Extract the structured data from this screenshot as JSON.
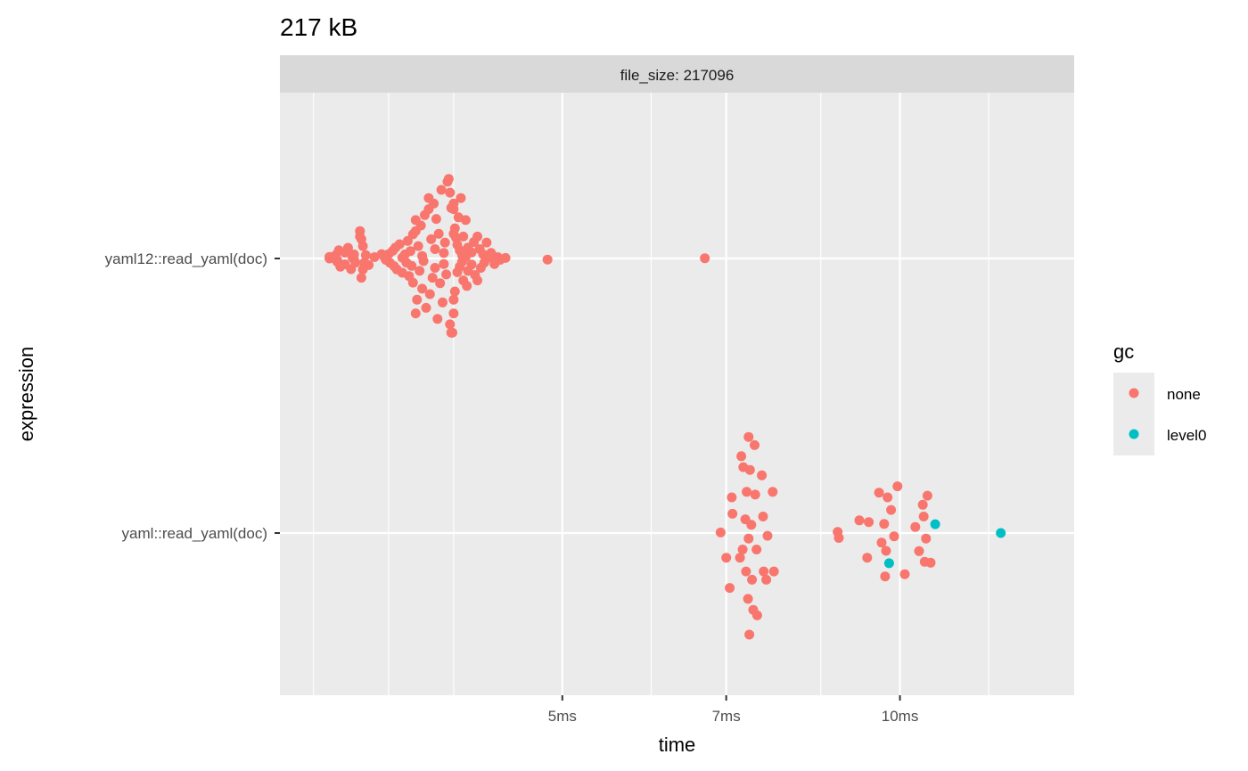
{
  "chart_data": {
    "type": "scatter",
    "title": "217 kB",
    "facet_label": "file_size: 217096",
    "xlabel": "time",
    "ylabel": "expression",
    "x_scale": "log",
    "x_unit": "ms",
    "xlim": [
      2.8,
      14.3
    ],
    "x_ticks": [
      {
        "value": 5,
        "label": "5ms"
      },
      {
        "value": 7,
        "label": "7ms"
      },
      {
        "value": 10,
        "label": "10ms"
      }
    ],
    "y_categories": [
      "yaml12::read_yaml(doc)",
      "yaml::read_yaml(doc)"
    ],
    "grid": true,
    "legend": {
      "title": "gc",
      "position": "right",
      "entries": [
        {
          "label": "none",
          "color": "#F8766D"
        },
        {
          "label": "level0",
          "color": "#00BFC4"
        }
      ]
    },
    "series": [
      {
        "category": "yaml12::read_yaml(doc)",
        "points": [
          {
            "x": 3.1,
            "dy": 0,
            "gc": "none"
          },
          {
            "x": 3.1,
            "dy": 0.006,
            "gc": "none"
          },
          {
            "x": 3.14,
            "dy": 0.012,
            "gc": "none"
          },
          {
            "x": 3.15,
            "dy": -0.006,
            "gc": "none"
          },
          {
            "x": 3.15,
            "dy": -0.012,
            "gc": "none"
          },
          {
            "x": 3.16,
            "dy": 0.03,
            "gc": "none"
          },
          {
            "x": 3.17,
            "dy": -0.03,
            "gc": "none"
          },
          {
            "x": 3.2,
            "dy": 0.021,
            "gc": "none"
          },
          {
            "x": 3.2,
            "dy": -0.021,
            "gc": "none"
          },
          {
            "x": 3.22,
            "dy": 0.039,
            "gc": "none"
          },
          {
            "x": 3.24,
            "dy": -0.039,
            "gc": "none"
          },
          {
            "x": 3.25,
            "dy": 0.003,
            "gc": "none"
          },
          {
            "x": 3.26,
            "dy": -0.003,
            "gc": "none"
          },
          {
            "x": 3.26,
            "dy": 0.015,
            "gc": "none"
          },
          {
            "x": 3.27,
            "dy": -0.015,
            "gc": "none"
          },
          {
            "x": 3.3,
            "dy": 0.1,
            "gc": "none"
          },
          {
            "x": 3.3,
            "dy": 0.08,
            "gc": "none"
          },
          {
            "x": 3.31,
            "dy": -0.07,
            "gc": "none"
          },
          {
            "x": 3.31,
            "dy": 0.07,
            "gc": "none"
          },
          {
            "x": 3.32,
            "dy": -0.04,
            "gc": "none"
          },
          {
            "x": 3.32,
            "dy": 0.045,
            "gc": "none"
          },
          {
            "x": 3.33,
            "dy": -0.015,
            "gc": "none"
          },
          {
            "x": 3.34,
            "dy": 0.012,
            "gc": "none"
          },
          {
            "x": 3.36,
            "dy": -0.024,
            "gc": "none"
          },
          {
            "x": 3.4,
            "dy": 0.005,
            "gc": "none"
          },
          {
            "x": 3.45,
            "dy": 0.016,
            "gc": "none"
          },
          {
            "x": 3.47,
            "dy": 0.005,
            "gc": "none"
          },
          {
            "x": 3.48,
            "dy": -0.005,
            "gc": "none"
          },
          {
            "x": 3.5,
            "dy": 0.016,
            "gc": "none"
          },
          {
            "x": 3.51,
            "dy": -0.016,
            "gc": "none"
          },
          {
            "x": 3.53,
            "dy": 0.028,
            "gc": "none"
          },
          {
            "x": 3.54,
            "dy": -0.028,
            "gc": "none"
          },
          {
            "x": 3.55,
            "dy": 0.04,
            "gc": "none"
          },
          {
            "x": 3.56,
            "dy": -0.04,
            "gc": "none"
          },
          {
            "x": 3.58,
            "dy": 0.052,
            "gc": "none"
          },
          {
            "x": 3.6,
            "dy": -0.052,
            "gc": "none"
          },
          {
            "x": 3.6,
            "dy": 0.003,
            "gc": "none"
          },
          {
            "x": 3.62,
            "dy": 0.015,
            "gc": "none"
          },
          {
            "x": 3.63,
            "dy": -0.015,
            "gc": "none"
          },
          {
            "x": 3.64,
            "dy": 0.064,
            "gc": "none"
          },
          {
            "x": 3.65,
            "dy": -0.064,
            "gc": "none"
          },
          {
            "x": 3.66,
            "dy": 0.027,
            "gc": "none"
          },
          {
            "x": 3.67,
            "dy": -0.027,
            "gc": "none"
          },
          {
            "x": 3.68,
            "dy": 0.088,
            "gc": "none"
          },
          {
            "x": 3.68,
            "dy": -0.088,
            "gc": "none"
          },
          {
            "x": 3.7,
            "dy": 0.14,
            "gc": "none"
          },
          {
            "x": 3.7,
            "dy": 0.1,
            "gc": "none"
          },
          {
            "x": 3.7,
            "dy": -0.2,
            "gc": "none"
          },
          {
            "x": 3.71,
            "dy": -0.15,
            "gc": "none"
          },
          {
            "x": 3.72,
            "dy": 0.045,
            "gc": "none"
          },
          {
            "x": 3.73,
            "dy": -0.045,
            "gc": "none"
          },
          {
            "x": 3.74,
            "dy": 0.12,
            "gc": "none"
          },
          {
            "x": 3.75,
            "dy": -0.11,
            "gc": "none"
          },
          {
            "x": 3.75,
            "dy": 0.009,
            "gc": "none"
          },
          {
            "x": 3.76,
            "dy": -0.009,
            "gc": "none"
          },
          {
            "x": 3.77,
            "dy": 0.158,
            "gc": "none"
          },
          {
            "x": 3.78,
            "dy": -0.18,
            "gc": "none"
          },
          {
            "x": 3.8,
            "dy": 0.22,
            "gc": "none"
          },
          {
            "x": 3.8,
            "dy": 0.18,
            "gc": "none"
          },
          {
            "x": 3.81,
            "dy": -0.13,
            "gc": "none"
          },
          {
            "x": 3.82,
            "dy": 0.07,
            "gc": "none"
          },
          {
            "x": 3.83,
            "dy": -0.07,
            "gc": "none"
          },
          {
            "x": 3.84,
            "dy": 0.2,
            "gc": "none"
          },
          {
            "x": 3.85,
            "dy": 0.034,
            "gc": "none"
          },
          {
            "x": 3.85,
            "dy": -0.034,
            "gc": "none"
          },
          {
            "x": 3.86,
            "dy": 0.144,
            "gc": "none"
          },
          {
            "x": 3.87,
            "dy": -0.22,
            "gc": "none"
          },
          {
            "x": 3.88,
            "dy": 0.09,
            "gc": "none"
          },
          {
            "x": 3.89,
            "dy": -0.09,
            "gc": "none"
          },
          {
            "x": 3.9,
            "dy": 0.25,
            "gc": "none"
          },
          {
            "x": 3.91,
            "dy": -0.16,
            "gc": "none"
          },
          {
            "x": 3.92,
            "dy": 0.02,
            "gc": "none"
          },
          {
            "x": 3.92,
            "dy": -0.02,
            "gc": "none"
          },
          {
            "x": 3.93,
            "dy": 0.058,
            "gc": "none"
          },
          {
            "x": 3.94,
            "dy": -0.058,
            "gc": "none"
          },
          {
            "x": 3.95,
            "dy": 0.28,
            "gc": "none"
          },
          {
            "x": 3.96,
            "dy": 0.29,
            "gc": "none"
          },
          {
            "x": 3.97,
            "dy": 0.24,
            "gc": "none"
          },
          {
            "x": 3.97,
            "dy": -0.24,
            "gc": "none"
          },
          {
            "x": 3.98,
            "dy": -0.27,
            "gc": "none"
          },
          {
            "x": 3.98,
            "dy": 0.184,
            "gc": "none"
          },
          {
            "x": 3.99,
            "dy": -0.27,
            "gc": "none"
          },
          {
            "x": 4.0,
            "dy": 0.2,
            "gc": "none"
          },
          {
            "x": 4.0,
            "dy": -0.2,
            "gc": "none"
          },
          {
            "x": 4.0,
            "dy": 0.18,
            "gc": "none"
          },
          {
            "x": 4.0,
            "dy": 0.09,
            "gc": "none"
          },
          {
            "x": 4.0,
            "dy": -0.15,
            "gc": "none"
          },
          {
            "x": 4.01,
            "dy": 0.11,
            "gc": "none"
          },
          {
            "x": 4.01,
            "dy": -0.12,
            "gc": "none"
          },
          {
            "x": 4.02,
            "dy": 0.075,
            "gc": "none"
          },
          {
            "x": 4.03,
            "dy": 0.05,
            "gc": "none"
          },
          {
            "x": 4.03,
            "dy": -0.05,
            "gc": "none"
          },
          {
            "x": 4.04,
            "dy": 0.15,
            "gc": "none"
          },
          {
            "x": 4.05,
            "dy": 0.03,
            "gc": "none"
          },
          {
            "x": 4.05,
            "dy": -0.03,
            "gc": "none"
          },
          {
            "x": 4.06,
            "dy": 0.22,
            "gc": "none"
          },
          {
            "x": 4.07,
            "dy": 0.012,
            "gc": "none"
          },
          {
            "x": 4.07,
            "dy": -0.012,
            "gc": "none"
          },
          {
            "x": 4.08,
            "dy": 0.08,
            "gc": "none"
          },
          {
            "x": 4.08,
            "dy": -0.08,
            "gc": "none"
          },
          {
            "x": 4.1,
            "dy": 0.14,
            "gc": "none"
          },
          {
            "x": 4.1,
            "dy": 0.006,
            "gc": "none"
          },
          {
            "x": 4.11,
            "dy": -0.1,
            "gc": "none"
          },
          {
            "x": 4.12,
            "dy": 0.04,
            "gc": "none"
          },
          {
            "x": 4.12,
            "dy": -0.045,
            "gc": "none"
          },
          {
            "x": 4.15,
            "dy": 0.022,
            "gc": "none"
          },
          {
            "x": 4.15,
            "dy": -0.022,
            "gc": "none"
          },
          {
            "x": 4.17,
            "dy": 0.06,
            "gc": "none"
          },
          {
            "x": 4.18,
            "dy": -0.06,
            "gc": "none"
          },
          {
            "x": 4.2,
            "dy": 0.08,
            "gc": "none"
          },
          {
            "x": 4.2,
            "dy": -0.08,
            "gc": "none"
          },
          {
            "x": 4.22,
            "dy": 0.034,
            "gc": "none"
          },
          {
            "x": 4.23,
            "dy": -0.034,
            "gc": "none"
          },
          {
            "x": 4.25,
            "dy": 0.015,
            "gc": "none"
          },
          {
            "x": 4.26,
            "dy": -0.015,
            "gc": "none"
          },
          {
            "x": 4.28,
            "dy": 0.058,
            "gc": "none"
          },
          {
            "x": 4.3,
            "dy": 0.004,
            "gc": "none"
          },
          {
            "x": 4.32,
            "dy": 0.02,
            "gc": "none"
          },
          {
            "x": 4.35,
            "dy": -0.02,
            "gc": "none"
          },
          {
            "x": 4.38,
            "dy": 0.005,
            "gc": "none"
          },
          {
            "x": 4.4,
            "dy": -0.005,
            "gc": "none"
          },
          {
            "x": 4.45,
            "dy": 0.002,
            "gc": "none"
          },
          {
            "x": 4.85,
            "dy": -0.004,
            "gc": "none"
          },
          {
            "x": 6.7,
            "dy": 0.001,
            "gc": "none"
          }
        ]
      },
      {
        "category": "yaml::read_yaml(doc)",
        "points": [
          {
            "x": 6.92,
            "dy": 0.002,
            "gc": "none"
          },
          {
            "x": 7.0,
            "dy": -0.09,
            "gc": "none"
          },
          {
            "x": 7.05,
            "dy": -0.2,
            "gc": "none"
          },
          {
            "x": 7.08,
            "dy": 0.13,
            "gc": "none"
          },
          {
            "x": 7.09,
            "dy": 0.07,
            "gc": "none"
          },
          {
            "x": 7.2,
            "dy": -0.09,
            "gc": "none"
          },
          {
            "x": 7.22,
            "dy": 0.28,
            "gc": "none"
          },
          {
            "x": 7.24,
            "dy": -0.06,
            "gc": "none"
          },
          {
            "x": 7.25,
            "dy": 0.24,
            "gc": "none"
          },
          {
            "x": 7.28,
            "dy": 0.05,
            "gc": "none"
          },
          {
            "x": 7.29,
            "dy": -0.14,
            "gc": "none"
          },
          {
            "x": 7.3,
            "dy": 0.15,
            "gc": "none"
          },
          {
            "x": 7.32,
            "dy": -0.24,
            "gc": "none"
          },
          {
            "x": 7.33,
            "dy": 0.35,
            "gc": "none"
          },
          {
            "x": 7.33,
            "dy": -0.02,
            "gc": "none"
          },
          {
            "x": 7.34,
            "dy": -0.37,
            "gc": "none"
          },
          {
            "x": 7.35,
            "dy": 0.23,
            "gc": "none"
          },
          {
            "x": 7.37,
            "dy": 0.03,
            "gc": "none"
          },
          {
            "x": 7.38,
            "dy": -0.17,
            "gc": "none"
          },
          {
            "x": 7.4,
            "dy": -0.28,
            "gc": "none"
          },
          {
            "x": 7.42,
            "dy": 0.32,
            "gc": "none"
          },
          {
            "x": 7.43,
            "dy": 0.14,
            "gc": "none"
          },
          {
            "x": 7.45,
            "dy": -0.06,
            "gc": "none"
          },
          {
            "x": 7.46,
            "dy": -0.3,
            "gc": "none"
          },
          {
            "x": 7.53,
            "dy": 0.21,
            "gc": "none"
          },
          {
            "x": 7.55,
            "dy": 0.06,
            "gc": "none"
          },
          {
            "x": 7.56,
            "dy": -0.14,
            "gc": "none"
          },
          {
            "x": 7.6,
            "dy": -0.17,
            "gc": "none"
          },
          {
            "x": 7.62,
            "dy": -0.01,
            "gc": "none"
          },
          {
            "x": 7.7,
            "dy": 0.15,
            "gc": "none"
          },
          {
            "x": 7.72,
            "dy": -0.14,
            "gc": "none"
          },
          {
            "x": 8.8,
            "dy": 0.004,
            "gc": "none"
          },
          {
            "x": 8.82,
            "dy": -0.018,
            "gc": "none"
          },
          {
            "x": 9.2,
            "dy": 0.046,
            "gc": "none"
          },
          {
            "x": 9.35,
            "dy": -0.09,
            "gc": "none"
          },
          {
            "x": 9.38,
            "dy": 0.04,
            "gc": "none"
          },
          {
            "x": 9.58,
            "dy": 0.147,
            "gc": "none"
          },
          {
            "x": 9.63,
            "dy": -0.035,
            "gc": "none"
          },
          {
            "x": 9.68,
            "dy": 0.033,
            "gc": "none"
          },
          {
            "x": 9.7,
            "dy": -0.158,
            "gc": "none"
          },
          {
            "x": 9.72,
            "dy": -0.065,
            "gc": "none"
          },
          {
            "x": 9.75,
            "dy": 0.13,
            "gc": "none"
          },
          {
            "x": 9.78,
            "dy": -0.11,
            "gc": "level0"
          },
          {
            "x": 9.82,
            "dy": 0.084,
            "gc": "none"
          },
          {
            "x": 9.88,
            "dy": -0.012,
            "gc": "none"
          },
          {
            "x": 9.95,
            "dy": 0.17,
            "gc": "none"
          },
          {
            "x": 10.1,
            "dy": -0.15,
            "gc": "none"
          },
          {
            "x": 10.32,
            "dy": 0.022,
            "gc": "none"
          },
          {
            "x": 10.4,
            "dy": -0.066,
            "gc": "none"
          },
          {
            "x": 10.48,
            "dy": 0.103,
            "gc": "none"
          },
          {
            "x": 10.5,
            "dy": 0.06,
            "gc": "none"
          },
          {
            "x": 10.52,
            "dy": -0.105,
            "gc": "none"
          },
          {
            "x": 10.55,
            "dy": -0.02,
            "gc": "none"
          },
          {
            "x": 10.58,
            "dy": 0.136,
            "gc": "none"
          },
          {
            "x": 10.65,
            "dy": -0.108,
            "gc": "none"
          },
          {
            "x": 10.75,
            "dy": 0.032,
            "gc": "level0"
          },
          {
            "x": 12.3,
            "dy": 0,
            "gc": "level0"
          }
        ]
      }
    ]
  }
}
